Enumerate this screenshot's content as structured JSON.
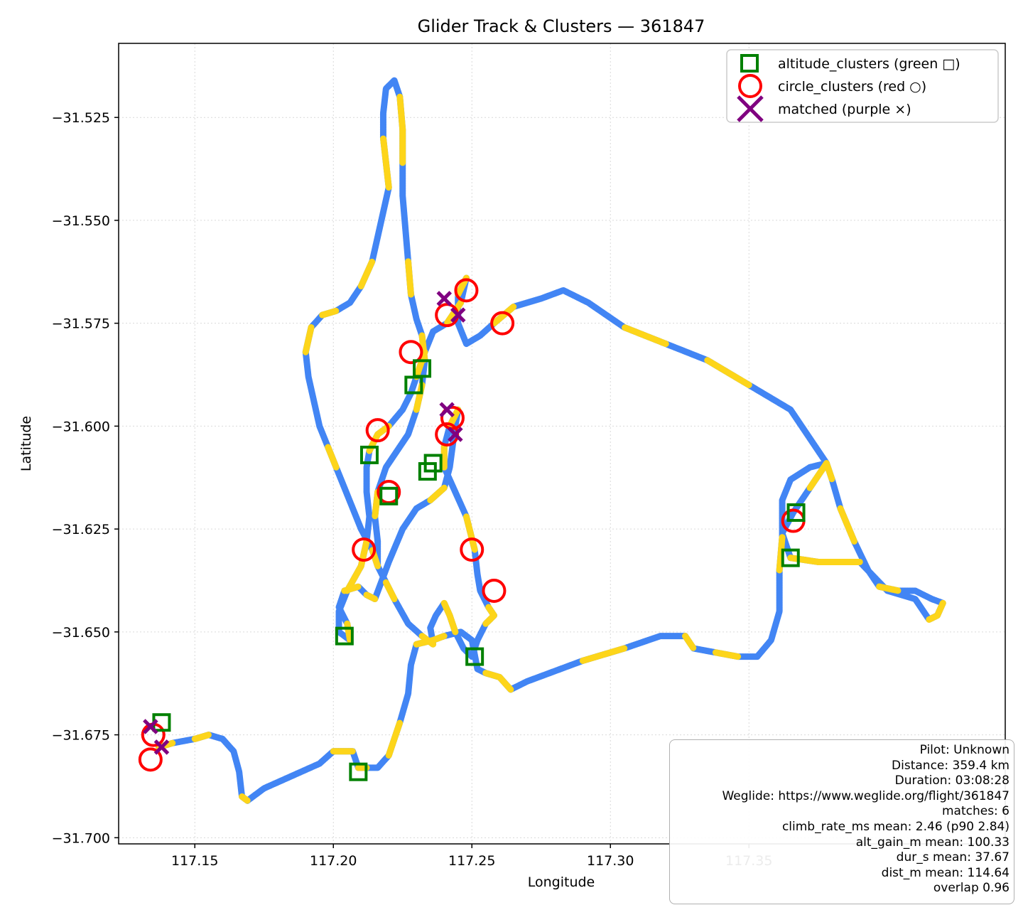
{
  "chart_data": {
    "type": "scatter",
    "title": "Glider Track & Clusters — 361847",
    "xlabel": "Longitude",
    "ylabel": "Latitude",
    "xlim": [
      117.1225,
      117.4425
    ],
    "ylim": [
      -31.7015,
      -31.507
    ],
    "x_ticks": [
      117.15,
      117.2,
      117.25,
      117.3,
      117.35
    ],
    "x_tick_labels": [
      "117.15",
      "117.20",
      "117.25",
      "117.30",
      "117.35"
    ],
    "y_ticks": [
      -31.525,
      -31.55,
      -31.575,
      -31.6,
      -31.625,
      -31.65,
      -31.675,
      -31.7
    ],
    "y_tick_labels": [
      "−31.525",
      "−31.550",
      "−31.575",
      "−31.600",
      "−31.625",
      "−31.650",
      "−31.675",
      "−31.700"
    ],
    "grid": true,
    "legend_position": "top-right",
    "colors": {
      "track_blue": "#4285f4",
      "track_yellow": "#fdd51a",
      "altitude_clusters": "#008000",
      "circle_clusters": "#ff0000",
      "matched": "#800080"
    },
    "legend": [
      {
        "name": "altitude_clusters (green □)",
        "marker": "square",
        "color": "#008000"
      },
      {
        "name": "circle_clusters (red ○)",
        "marker": "circle",
        "color": "#ff0000"
      },
      {
        "name": "matched (purple ×)",
        "marker": "x",
        "color": "#800080"
      }
    ],
    "track": [
      [
        117.137,
        -31.678
      ],
      [
        117.142,
        -31.677
      ],
      [
        117.15,
        -31.676
      ],
      [
        117.155,
        -31.675
      ],
      [
        117.16,
        -31.676
      ],
      [
        117.164,
        -31.679
      ],
      [
        117.166,
        -31.684
      ],
      [
        117.167,
        -31.69
      ],
      [
        117.169,
        -31.691
      ],
      [
        117.175,
        -31.688
      ],
      [
        117.185,
        -31.685
      ],
      [
        117.195,
        -31.682
      ],
      [
        117.2,
        -31.679
      ],
      [
        117.207,
        -31.679
      ],
      [
        117.209,
        -31.683
      ],
      [
        117.212,
        -31.683
      ],
      [
        117.216,
        -31.683
      ],
      [
        117.22,
        -31.68
      ],
      [
        117.224,
        -31.672
      ],
      [
        117.227,
        -31.665
      ],
      [
        117.228,
        -31.658
      ],
      [
        117.23,
        -31.653
      ],
      [
        117.236,
        -31.652
      ],
      [
        117.24,
        -31.651
      ],
      [
        117.246,
        -31.65
      ],
      [
        117.25,
        -31.652
      ],
      [
        117.252,
        -31.659
      ],
      [
        117.255,
        -31.66
      ],
      [
        117.26,
        -31.661
      ],
      [
        117.264,
        -31.664
      ],
      [
        117.27,
        -31.662
      ],
      [
        117.278,
        -31.66
      ],
      [
        117.29,
        -31.657
      ],
      [
        117.305,
        -31.654
      ],
      [
        117.318,
        -31.651
      ],
      [
        117.327,
        -31.651
      ],
      [
        117.33,
        -31.654
      ],
      [
        117.338,
        -31.655
      ],
      [
        117.346,
        -31.656
      ],
      [
        117.353,
        -31.656
      ],
      [
        117.358,
        -31.652
      ],
      [
        117.361,
        -31.645
      ],
      [
        117.361,
        -31.635
      ],
      [
        117.362,
        -31.627
      ],
      [
        117.362,
        -31.618
      ],
      [
        117.365,
        -31.613
      ],
      [
        117.372,
        -31.61
      ],
      [
        117.378,
        -31.609
      ],
      [
        117.38,
        -31.613
      ],
      [
        117.383,
        -31.62
      ],
      [
        117.388,
        -31.628
      ],
      [
        117.393,
        -31.635
      ],
      [
        117.397,
        -31.639
      ],
      [
        117.404,
        -31.64
      ],
      [
        117.41,
        -31.64
      ],
      [
        117.416,
        -31.642
      ],
      [
        117.42,
        -31.643
      ],
      [
        117.418,
        -31.646
      ],
      [
        117.415,
        -31.647
      ],
      [
        117.413,
        -31.645
      ],
      [
        117.41,
        -31.642
      ],
      [
        117.4,
        -31.64
      ],
      [
        117.39,
        -31.633
      ],
      [
        117.375,
        -31.633
      ],
      [
        117.365,
        -31.632
      ],
      [
        117.362,
        -31.626
      ],
      [
        117.366,
        -31.621
      ],
      [
        117.372,
        -31.615
      ],
      [
        117.378,
        -31.609
      ],
      [
        117.365,
        -31.596
      ],
      [
        117.35,
        -31.59
      ],
      [
        117.335,
        -31.584
      ],
      [
        117.32,
        -31.58
      ],
      [
        117.305,
        -31.576
      ],
      [
        117.292,
        -31.57
      ],
      [
        117.283,
        -31.567
      ],
      [
        117.275,
        -31.569
      ],
      [
        117.265,
        -31.571
      ],
      [
        117.258,
        -31.575
      ],
      [
        117.253,
        -31.578
      ],
      [
        117.248,
        -31.58
      ],
      [
        117.245,
        -31.575
      ],
      [
        117.245,
        -31.568
      ],
      [
        117.248,
        -31.564
      ],
      [
        117.246,
        -31.57
      ],
      [
        117.241,
        -31.575
      ],
      [
        117.236,
        -31.577
      ],
      [
        117.233,
        -31.582
      ],
      [
        117.23,
        -31.588
      ],
      [
        117.228,
        -31.592
      ],
      [
        117.225,
        -31.596
      ],
      [
        117.22,
        -31.6
      ],
      [
        117.216,
        -31.602
      ],
      [
        117.213,
        -31.606
      ],
      [
        117.212,
        -31.61
      ],
      [
        117.212,
        -31.616
      ],
      [
        117.213,
        -31.622
      ],
      [
        117.212,
        -31.628
      ],
      [
        117.21,
        -31.634
      ],
      [
        117.205,
        -31.64
      ],
      [
        117.202,
        -31.645
      ],
      [
        117.202,
        -31.65
      ],
      [
        117.206,
        -31.652
      ],
      [
        117.205,
        -31.648
      ],
      [
        117.202,
        -31.644
      ],
      [
        117.204,
        -31.64
      ],
      [
        117.209,
        -31.639
      ],
      [
        117.212,
        -31.641
      ],
      [
        117.215,
        -31.642
      ],
      [
        117.22,
        -31.633
      ],
      [
        117.225,
        -31.625
      ],
      [
        117.23,
        -31.62
      ],
      [
        117.235,
        -31.618
      ],
      [
        117.24,
        -31.615
      ],
      [
        117.242,
        -31.61
      ],
      [
        117.243,
        -31.605
      ],
      [
        117.244,
        -31.6
      ],
      [
        117.245,
        -31.596
      ],
      [
        117.242,
        -31.6
      ],
      [
        117.24,
        -31.605
      ],
      [
        117.24,
        -31.61
      ],
      [
        117.244,
        -31.616
      ],
      [
        117.248,
        -31.622
      ],
      [
        117.251,
        -31.63
      ],
      [
        117.252,
        -31.636
      ],
      [
        117.253,
        -31.64
      ],
      [
        117.256,
        -31.644
      ],
      [
        117.258,
        -31.646
      ],
      [
        117.255,
        -31.648
      ],
      [
        117.252,
        -31.652
      ],
      [
        117.25,
        -31.656
      ],
      [
        117.247,
        -31.654
      ],
      [
        117.244,
        -31.65
      ],
      [
        117.242,
        -31.646
      ],
      [
        117.24,
        -31.643
      ],
      [
        117.237,
        -31.646
      ],
      [
        117.235,
        -31.649
      ],
      [
        117.236,
        -31.653
      ],
      [
        117.232,
        -31.651
      ],
      [
        117.227,
        -31.648
      ],
      [
        117.222,
        -31.642
      ],
      [
        117.219,
        -31.638
      ],
      [
        117.216,
        -31.634
      ],
      [
        117.214,
        -31.63
      ],
      [
        117.21,
        -31.625
      ],
      [
        117.207,
        -31.62
      ],
      [
        117.204,
        -31.615
      ],
      [
        117.201,
        -31.61
      ],
      [
        117.198,
        -31.605
      ],
      [
        117.195,
        -31.6
      ],
      [
        117.193,
        -31.594
      ],
      [
        117.191,
        -31.588
      ],
      [
        117.19,
        -31.582
      ],
      [
        117.192,
        -31.576
      ],
      [
        117.196,
        -31.573
      ],
      [
        117.201,
        -31.572
      ],
      [
        117.206,
        -31.57
      ],
      [
        117.21,
        -31.566
      ],
      [
        117.214,
        -31.56
      ],
      [
        117.216,
        -31.554
      ],
      [
        117.218,
        -31.548
      ],
      [
        117.22,
        -31.542
      ],
      [
        117.219,
        -31.536
      ],
      [
        117.218,
        -31.53
      ],
      [
        117.218,
        -31.524
      ],
      [
        117.219,
        -31.518
      ],
      [
        117.222,
        -31.516
      ],
      [
        117.224,
        -31.52
      ],
      [
        117.225,
        -31.528
      ],
      [
        117.225,
        -31.536
      ],
      [
        117.225,
        -31.544
      ],
      [
        117.226,
        -31.552
      ],
      [
        117.227,
        -31.56
      ],
      [
        117.228,
        -31.568
      ],
      [
        117.23,
        -31.574
      ],
      [
        117.232,
        -31.578
      ],
      [
        117.233,
        -31.584
      ],
      [
        117.232,
        -31.59
      ],
      [
        117.23,
        -31.596
      ],
      [
        117.227,
        -31.602
      ],
      [
        117.223,
        -31.606
      ],
      [
        117.219,
        -31.61
      ],
      [
        117.216,
        -31.616
      ],
      [
        117.215,
        -31.622
      ],
      [
        117.216,
        -31.628
      ],
      [
        117.216,
        -31.634
      ]
    ],
    "altitude_clusters": [
      [
        117.138,
        -31.672
      ],
      [
        117.209,
        -31.684
      ],
      [
        117.204,
        -31.651
      ],
      [
        117.251,
        -31.656
      ],
      [
        117.22,
        -31.617
      ],
      [
        117.213,
        -31.607
      ],
      [
        117.234,
        -31.611
      ],
      [
        117.236,
        -31.609
      ],
      [
        117.229,
        -31.59
      ],
      [
        117.232,
        -31.586
      ],
      [
        117.365,
        -31.632
      ],
      [
        117.367,
        -31.621
      ]
    ],
    "circle_clusters": [
      [
        117.134,
        -31.681
      ],
      [
        117.135,
        -31.675
      ],
      [
        117.211,
        -31.63
      ],
      [
        117.22,
        -31.616
      ],
      [
        117.216,
        -31.601
      ],
      [
        117.241,
        -31.602
      ],
      [
        117.243,
        -31.598
      ],
      [
        117.241,
        -31.573
      ],
      [
        117.248,
        -31.567
      ],
      [
        117.261,
        -31.575
      ],
      [
        117.228,
        -31.582
      ],
      [
        117.25,
        -31.63
      ],
      [
        117.258,
        -31.64
      ],
      [
        117.366,
        -31.623
      ]
    ],
    "matched": [
      [
        117.134,
        -31.673
      ],
      [
        117.138,
        -31.678
      ],
      [
        117.241,
        -31.596
      ],
      [
        117.244,
        -31.602
      ],
      [
        117.24,
        -31.569
      ],
      [
        117.245,
        -31.573
      ]
    ]
  },
  "info_box": {
    "pilot": "Pilot: Unknown",
    "distance": "Distance: 359.4 km",
    "duration": "Duration: 03:08:28",
    "weglide": "Weglide: https://www.weglide.org/flight/361847",
    "matches": "matches: 6",
    "climb_rate": "climb_rate_ms mean: 2.46 (p90 2.84)",
    "alt_gain": "alt_gain_m mean: 100.33",
    "dur": "dur_s mean: 37.67",
    "dist": "dist_m mean: 114.64",
    "overlap": "overlap 0.96"
  }
}
